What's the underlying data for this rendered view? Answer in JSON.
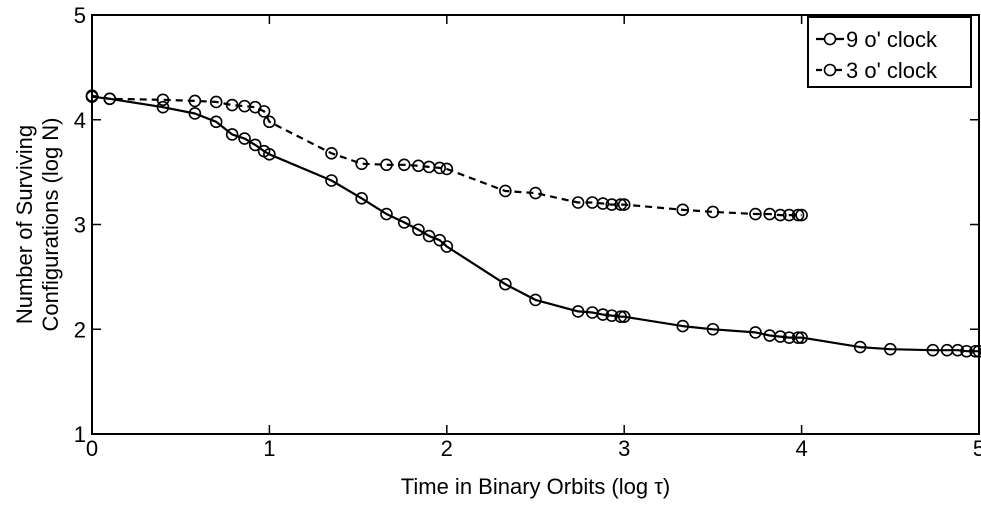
{
  "chart_data": {
    "type": "line",
    "title": "",
    "xlabel": "Time in Binary Orbits (log τ)",
    "ylabel_lines": [
      "Number of Surviving",
      "Configurations (log N)"
    ],
    "xlim": [
      0,
      5
    ],
    "ylim": [
      1,
      5
    ],
    "xticks": [
      0,
      1,
      2,
      3,
      4,
      5
    ],
    "yticks": [
      1,
      2,
      3,
      4,
      5
    ],
    "grid": false,
    "legend_position": "top-right",
    "series": [
      {
        "name": "9 o' clock",
        "line_style": "solid",
        "x": [
          0,
          0.1,
          0.4,
          0.58,
          0.7,
          0.79,
          0.86,
          0.92,
          0.97,
          1.0,
          1.35,
          1.52,
          1.66,
          1.76,
          1.84,
          1.9,
          1.96,
          2.0,
          2.33,
          2.5,
          2.74,
          2.82,
          2.88,
          2.93,
          2.98,
          3.0,
          3.33,
          3.5,
          3.74,
          3.82,
          3.88,
          3.93,
          3.98,
          4.0,
          4.33,
          4.5,
          4.74,
          4.82,
          4.88,
          4.93,
          4.98,
          5.0
        ],
        "y": [
          4.22,
          4.2,
          4.12,
          4.06,
          3.98,
          3.86,
          3.82,
          3.76,
          3.7,
          3.67,
          3.42,
          3.25,
          3.1,
          3.02,
          2.95,
          2.89,
          2.85,
          2.79,
          2.43,
          2.28,
          2.17,
          2.16,
          2.14,
          2.13,
          2.12,
          2.12,
          2.03,
          2.0,
          1.97,
          1.94,
          1.93,
          1.92,
          1.92,
          1.92,
          1.83,
          1.81,
          1.8,
          1.8,
          1.8,
          1.79,
          1.79,
          1.79
        ]
      },
      {
        "name": "3 o' clock",
        "line_style": "dashed",
        "x": [
          0,
          0.1,
          0.4,
          0.58,
          0.7,
          0.79,
          0.86,
          0.92,
          0.97,
          1.0,
          1.35,
          1.52,
          1.66,
          1.76,
          1.84,
          1.9,
          1.96,
          2.0,
          2.33,
          2.5,
          2.74,
          2.82,
          2.88,
          2.93,
          2.98,
          3.0,
          3.33,
          3.5,
          3.74,
          3.82,
          3.88,
          3.93,
          3.98,
          4.0
        ],
        "y": [
          4.23,
          4.2,
          4.19,
          4.18,
          4.17,
          4.14,
          4.13,
          4.12,
          4.08,
          3.98,
          3.68,
          3.58,
          3.57,
          3.57,
          3.56,
          3.55,
          3.54,
          3.53,
          3.32,
          3.3,
          3.21,
          3.21,
          3.2,
          3.19,
          3.19,
          3.19,
          3.14,
          3.12,
          3.1,
          3.1,
          3.09,
          3.09,
          3.09,
          3.09
        ]
      }
    ]
  }
}
